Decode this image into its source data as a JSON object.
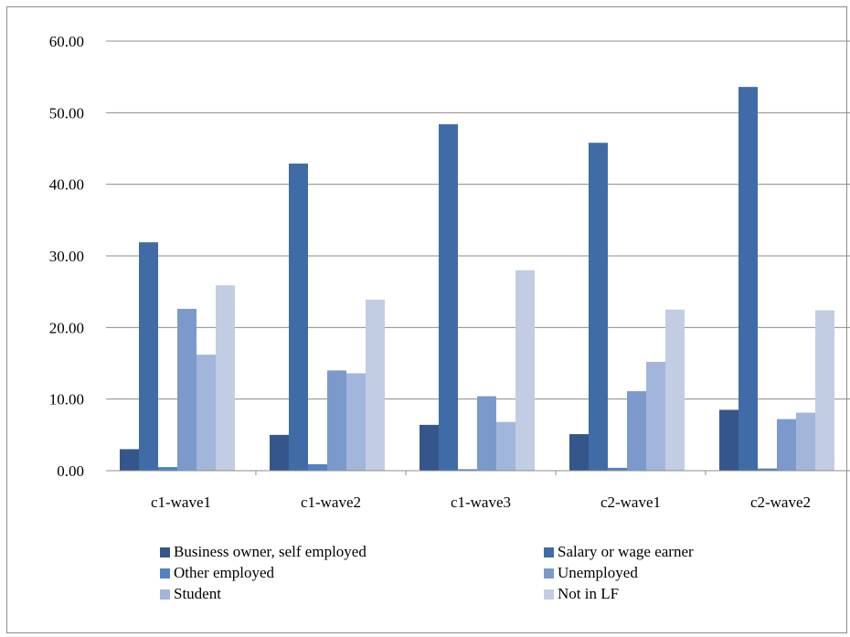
{
  "chart_data": {
    "type": "bar",
    "title": "",
    "xlabel": "",
    "ylabel": "",
    "ylim": [
      0,
      60
    ],
    "yticks": [
      "0.00",
      "10.00",
      "20.00",
      "30.00",
      "40.00",
      "50.00",
      "60.00"
    ],
    "grid": true,
    "legend_position": "bottom",
    "categories": [
      "c1-wave1",
      "c1-wave2",
      "c1-wave3",
      "c2-wave1",
      "c2-wave2"
    ],
    "series": [
      {
        "name": "Business owner, self employed",
        "color": "#34568b",
        "values": [
          3.0,
          5.0,
          6.4,
          5.1,
          8.5
        ]
      },
      {
        "name": "Salary or wage earner",
        "color": "#3f6ca6",
        "values": [
          31.9,
          42.9,
          48.4,
          45.8,
          53.6
        ]
      },
      {
        "name": "Other employed",
        "color": "#5281c4",
        "values": [
          0.5,
          0.9,
          0.2,
          0.4,
          0.3
        ]
      },
      {
        "name": "Unemployed",
        "color": "#7b9acb",
        "values": [
          22.6,
          14.0,
          10.4,
          11.1,
          7.2
        ]
      },
      {
        "name": "Student",
        "color": "#a2b5da",
        "values": [
          16.2,
          13.6,
          6.8,
          15.2,
          8.1
        ]
      },
      {
        "name": "Not in LF",
        "color": "#c2cde4",
        "values": [
          25.9,
          23.9,
          28.0,
          22.5,
          22.4
        ]
      }
    ]
  }
}
